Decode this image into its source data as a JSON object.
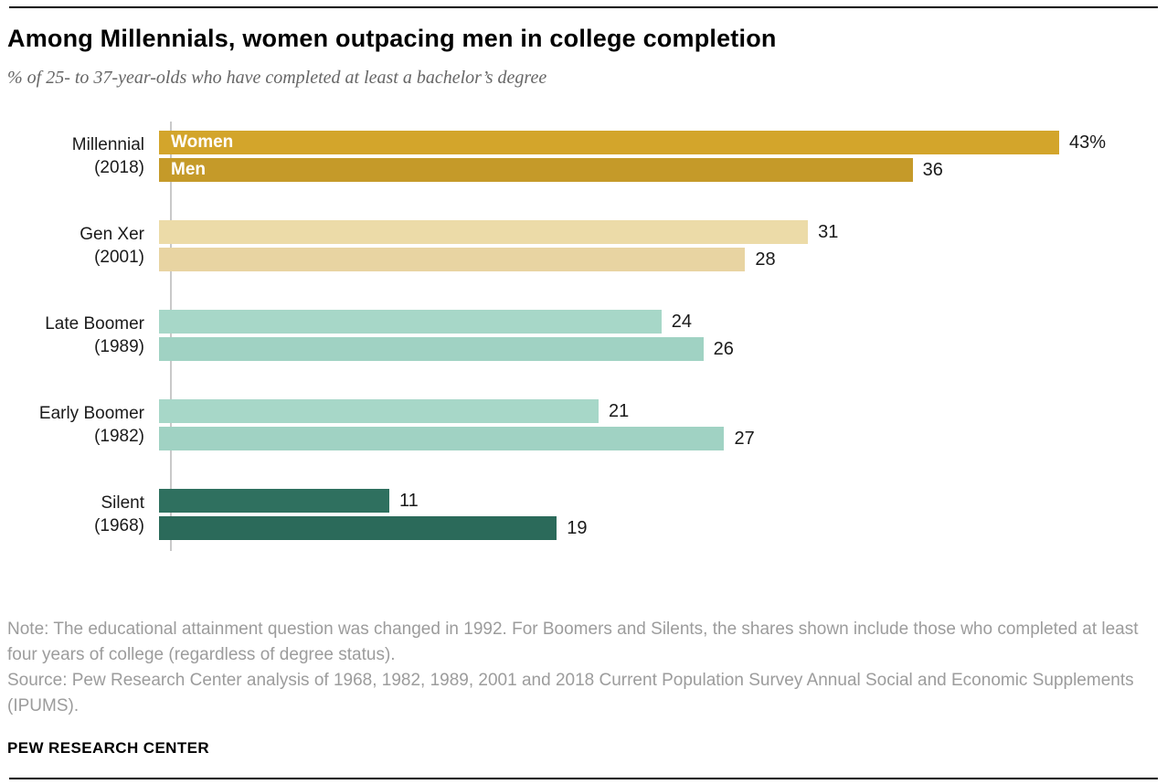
{
  "page": {
    "title": "Among Millennials, women outpacing men in college completion",
    "subtitle": "% of 25- to 37-year-olds who have completed at least a bachelor’s degree",
    "note": "Note: The educational attainment question was changed in 1992. For Boomers and Silents, the shares shown include those who completed at least four years of college (regardless of degree status).",
    "source": "Source: Pew Research Center analysis of 1968, 1982, 1989, 2001 and 2018 Current Population Survey Annual Social and Economic Supplements (IPUMS).",
    "footer": "PEW RESEARCH CENTER"
  },
  "chart_data": {
    "type": "bar",
    "orientation": "horizontal",
    "title": "Among Millennials, women outpacing men in college completion",
    "subtitle": "% of 25- to 37-year-olds who have completed at least a bachelor’s degree",
    "categories": [
      "Millennial (2018)",
      "Gen Xer (2001)",
      "Late Boomer (1989)",
      "Early Boomer (1982)",
      "Silent (1968)"
    ],
    "category_lines": [
      [
        "Millennial",
        "(2018)"
      ],
      [
        "Gen Xer",
        "(2001)"
      ],
      [
        "Late Boomer",
        "(1989)"
      ],
      [
        "Early Boomer",
        "(1982)"
      ],
      [
        "Silent",
        "(1968)"
      ]
    ],
    "series": [
      {
        "name": "Women",
        "values": [
          43,
          31,
          24,
          21,
          11
        ]
      },
      {
        "name": "Men",
        "values": [
          36,
          28,
          26,
          27,
          19
        ]
      }
    ],
    "value_labels": [
      [
        "43%",
        "36"
      ],
      [
        "31",
        "28"
      ],
      [
        "24",
        "26"
      ],
      [
        "21",
        "27"
      ],
      [
        "11",
        "19"
      ]
    ],
    "group_colors": [
      [
        "#d3a52b",
        "#c59a29"
      ],
      [
        "#ecdba8",
        "#e8d4a2"
      ],
      [
        "#a7d7c8",
        "#a0d2c3"
      ],
      [
        "#a7d7c8",
        "#a0d2c3"
      ],
      [
        "#2f705f",
        "#2b6a5a"
      ]
    ],
    "xlim": [
      0,
      43
    ],
    "grid": false,
    "legend_position": "in-bar labels on first group only",
    "axis_line_color": "#c9c9c9"
  }
}
